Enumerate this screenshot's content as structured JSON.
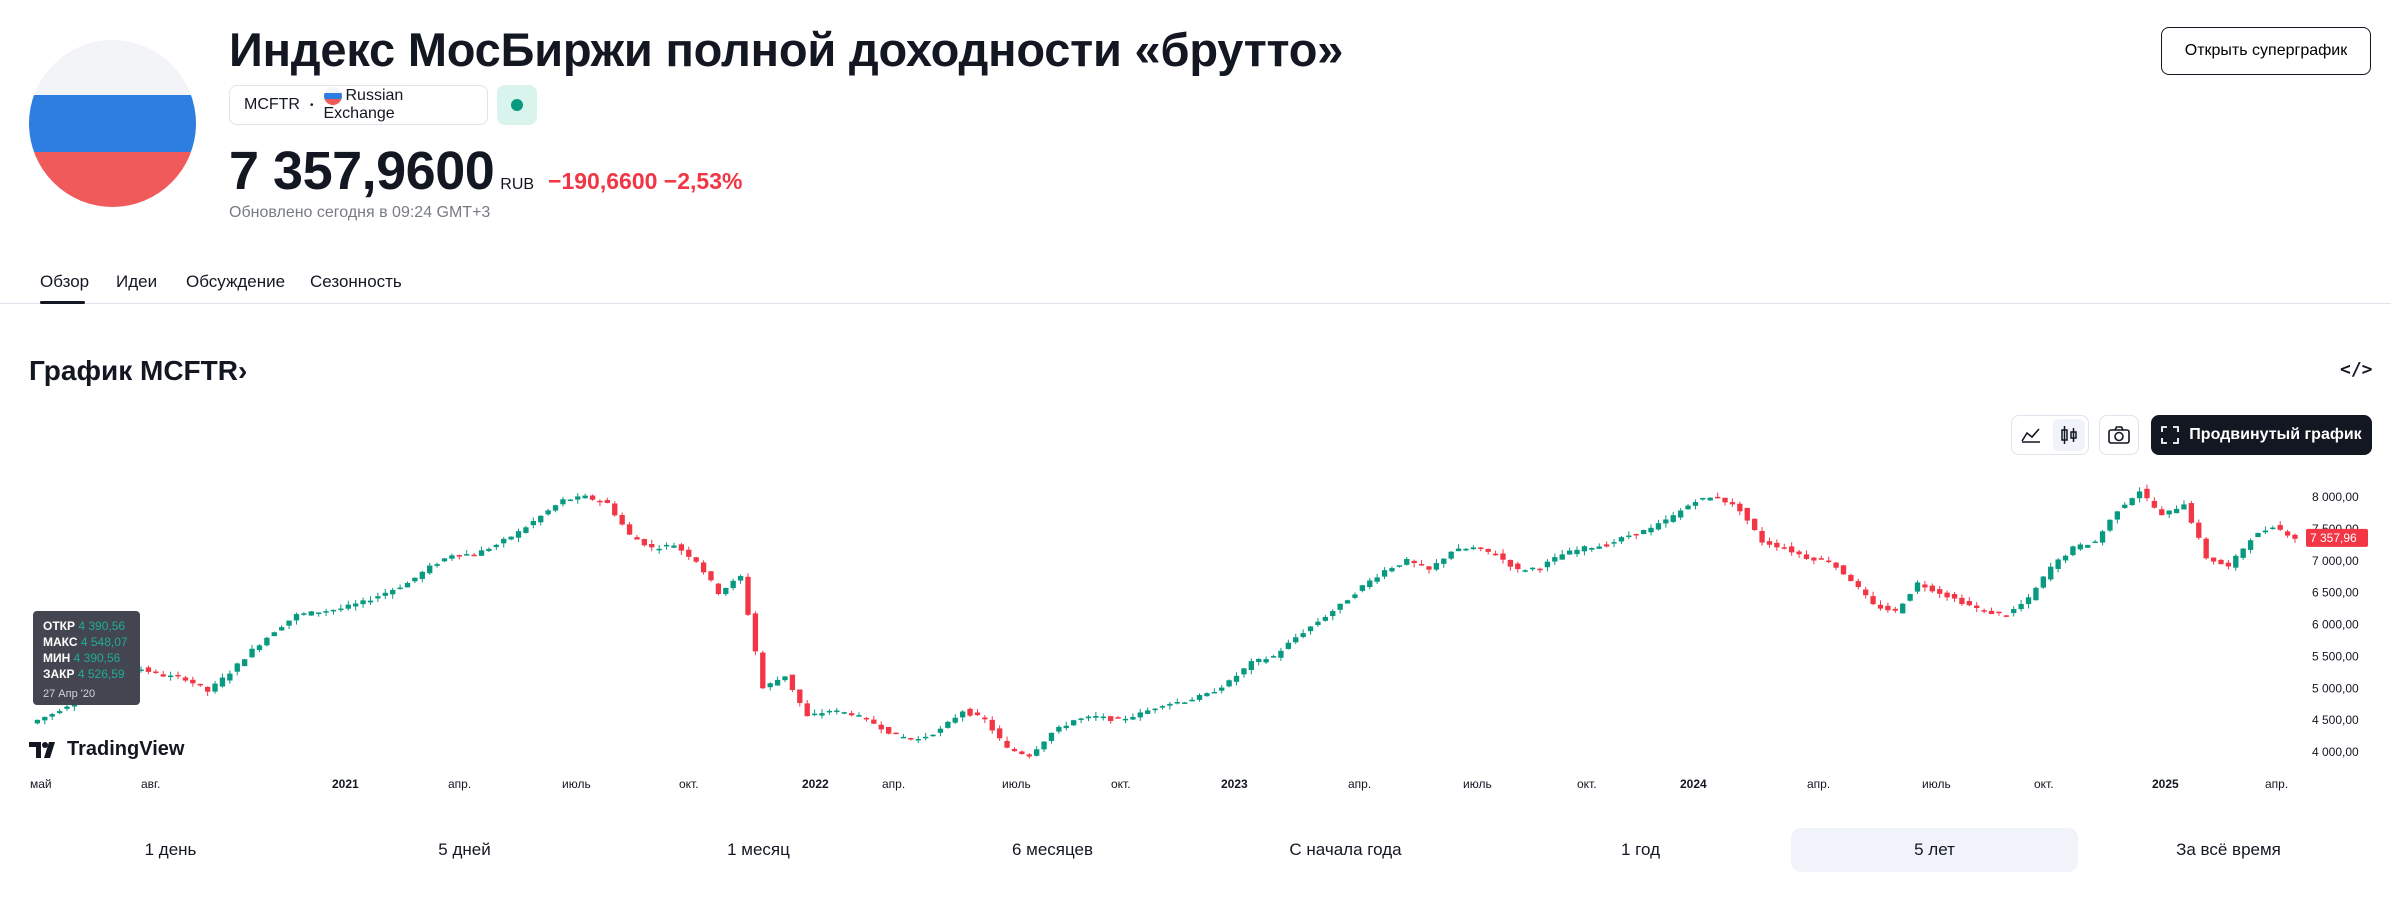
{
  "header": {
    "title": "Индекс МосБиржи полной доходности «брутто»",
    "ticker": "MCFTR",
    "exchange": "Russian Exchange",
    "price": "7 357,9600",
    "currency": "RUB",
    "change": "−190,6600 −2,53%",
    "updated": "Обновлено сегодня в 09:24 GMT+3",
    "supergraph_button": "Открыть суперграфик"
  },
  "tabs": [
    {
      "label": "Обзор",
      "active": true
    },
    {
      "label": "Идеи"
    },
    {
      "label": "Обсуждение"
    },
    {
      "label": "Сезонность"
    }
  ],
  "chart_section": {
    "title": "График MCFTR",
    "title_arrow": "›",
    "advanced_button": "Продвинутый график",
    "price_tag": "7 357,96",
    "logo_text": "TradingView"
  },
  "tooltip": {
    "open_label": "ОТКР",
    "open": "4 390,56",
    "high_label": "МАКС",
    "high": "4 548,07",
    "low_label": "МИН",
    "low": "4 390,56",
    "close_label": "ЗАКР",
    "close": "4 526,59",
    "date": "27 Апр '20"
  },
  "chart_data": {
    "type": "candlestick",
    "y_ticks": [
      "8 000,00",
      "7 500,00",
      "7 000,00",
      "6 500,00",
      "6 000,00",
      "5 500,00",
      "5 000,00",
      "4 500,00",
      "4 000,00"
    ],
    "y_tick_values": [
      8000,
      7500,
      7000,
      6500,
      6000,
      5500,
      5000,
      4500,
      4000
    ],
    "x_ticks": [
      "май",
      "авг.",
      "2021",
      "апр.",
      "июль",
      "окт.",
      "2022",
      "апр.",
      "июль",
      "окт.",
      "2023",
      "апр.",
      "июль",
      "окт.",
      "2024",
      "апр.",
      "июль",
      "окт.",
      "2025",
      "апр."
    ],
    "ylim": [
      3800,
      8200
    ],
    "up_color": "#089981",
    "down_color": "#f23645",
    "last_price": 7357.96,
    "close_series": [
      4450,
      4600,
      4800,
      5000,
      5350,
      5300,
      5200,
      5150,
      4950,
      5250,
      5600,
      5900,
      6150,
      6200,
      6250,
      6350,
      6500,
      6650,
      6900,
      7100,
      7100,
      7250,
      7450,
      7700,
      7950,
      8000,
      7900,
      7400,
      7200,
      7250,
      7000,
      6500,
      6750,
      5000,
      5200,
      4550,
      4650,
      4600,
      4450,
      4250,
      4200,
      4350,
      4650,
      4500,
      4050,
      3950,
      4300,
      4500,
      4550,
      4500,
      4600,
      4750,
      4800,
      4900,
      5100,
      5400,
      5500,
      5800,
      6050,
      6300,
      6600,
      6850,
      7000,
      6850,
      7150,
      7200,
      7100,
      6850,
      6900,
      7100,
      7200,
      7250,
      7400,
      7500,
      7700,
      7950,
      8000,
      7800,
      7300,
      7200,
      7050,
      7000,
      6700,
      6300,
      6200,
      6650,
      6500,
      6350,
      6200,
      6150,
      6400,
      6900,
      7200,
      7300,
      7800,
      8100,
      7700,
      7900,
      7050,
      6900,
      7350,
      7550,
      7357.96
    ]
  },
  "range": {
    "buttons": [
      "1 день",
      "5 дней",
      "1 месяц",
      "6 месяцев",
      "С начала года",
      "1 год",
      "5 лет",
      "За всё время"
    ],
    "selected": "5 лет"
  },
  "colors": {
    "accent": "#131722",
    "up": "#089981",
    "down": "#f23645",
    "flag_white": "#f3f4f8",
    "flag_blue": "#2e7de0",
    "flag_red": "#f15a5a"
  }
}
